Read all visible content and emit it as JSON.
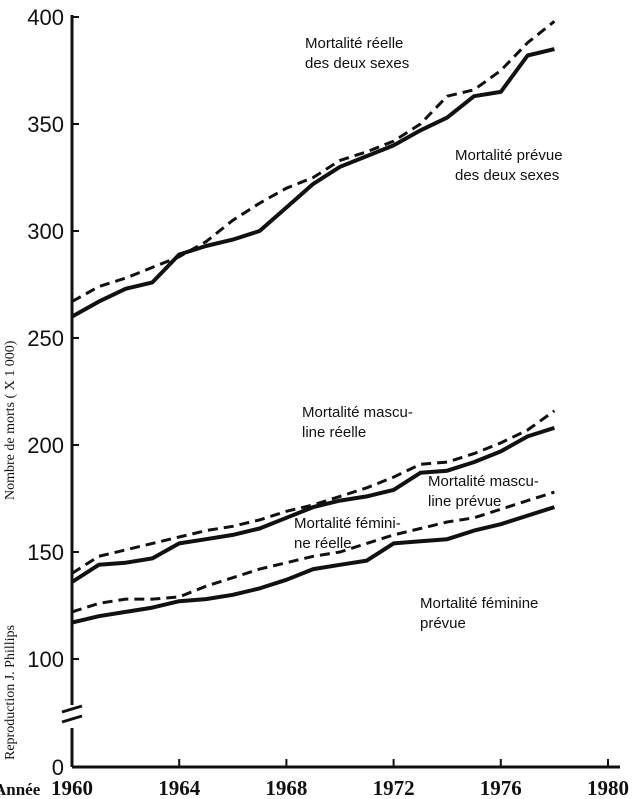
{
  "chart_data": {
    "type": "line",
    "title": "",
    "ylabel": "Nombre de morts ( X 1 000)",
    "xlabel_prefix": "Année",
    "credit": "Reproduction J. Phillips",
    "xlim": [
      1960,
      1980
    ],
    "ylim_display": [
      0,
      400
    ],
    "axis_break_between": [
      0,
      100
    ],
    "grid": false,
    "x_ticks": [
      1960,
      1964,
      1968,
      1972,
      1976,
      1980
    ],
    "y_ticks": [
      0,
      100,
      150,
      200,
      250,
      300,
      350,
      400
    ],
    "x": [
      1960,
      1961,
      1962,
      1963,
      1964,
      1965,
      1966,
      1967,
      1968,
      1969,
      1970,
      1971,
      1972,
      1973,
      1974,
      1975,
      1976,
      1977,
      1978
    ],
    "series": [
      {
        "name": "Mortalité réelle des deux sexes",
        "style": "solid",
        "values": [
          260,
          267,
          273,
          276,
          289,
          293,
          296,
          300,
          311,
          322,
          330,
          335,
          340,
          347,
          353,
          363,
          365,
          382,
          385
        ]
      },
      {
        "name": "Mortalité prévue des deux sexes",
        "style": "dashed",
        "values": [
          267,
          274,
          278,
          283,
          288,
          295,
          305,
          313,
          320,
          325,
          333,
          337,
          342,
          350,
          363,
          366,
          375,
          388,
          398
        ]
      },
      {
        "name": "Mortalité masculine réelle",
        "style": "solid",
        "values": [
          136,
          144,
          145,
          147,
          154,
          156,
          158,
          161,
          166,
          171,
          174,
          176,
          179,
          187,
          188,
          192,
          197,
          204,
          208
        ]
      },
      {
        "name": "Mortalité masculine prévue",
        "style": "dashed",
        "values": [
          140,
          148,
          151,
          154,
          157,
          160,
          162,
          165,
          169,
          172,
          176,
          180,
          185,
          191,
          192,
          196,
          201,
          207,
          216
        ]
      },
      {
        "name": "Mortalité féminine réelle",
        "style": "solid",
        "values": [
          117,
          120,
          122,
          124,
          127,
          128,
          130,
          133,
          137,
          142,
          144,
          146,
          154,
          155,
          156,
          160,
          163,
          167,
          171
        ]
      },
      {
        "name": "Mortalité féminine prévue",
        "style": "dashed",
        "values": [
          122,
          126,
          128,
          128,
          129,
          134,
          138,
          142,
          145,
          148,
          150,
          154,
          158,
          161,
          164,
          166,
          170,
          174,
          178
        ]
      }
    ],
    "annotations": [
      {
        "lines": [
          "Mortalité réelle",
          "des deux sexes"
        ]
      },
      {
        "lines": [
          "Mortalité prévue",
          "des deux sexes"
        ]
      },
      {
        "lines": [
          "Mortalité mascu-",
          "line réelle"
        ]
      },
      {
        "lines": [
          "Mortalité mascu-",
          "line prévue"
        ]
      },
      {
        "lines": [
          "Mortalité fémini-",
          "ne réelle"
        ]
      },
      {
        "lines": [
          "Mortalité féminine",
          "prévue"
        ]
      }
    ]
  }
}
